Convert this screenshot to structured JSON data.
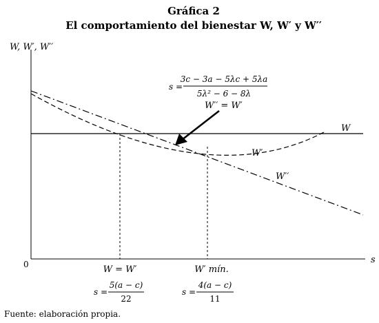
{
  "chart_data": {
    "type": "line",
    "title": "Gráfica 2",
    "subtitle": "El comportamiento del bienestar W, W′ y W′′",
    "ylabel": "W, W′, W′′",
    "xlabel": "s",
    "origin_label": "0",
    "series": [
      {
        "name": "W",
        "style": "solid"
      },
      {
        "name": "W′",
        "style": "dashed"
      },
      {
        "name": "W′′",
        "style": "dash-dot"
      }
    ],
    "annotations": {
      "intersection_formula": {
        "lhs": "s =",
        "numerator": "3c − 3a − 5λc + 5λa",
        "denominator": "5λ² − 6 − 8λ"
      },
      "intersection_label": "W′′ = W′",
      "marker1_label": "W = W′",
      "marker1_formula": {
        "lhs": "s =",
        "numerator": "5(a − c)",
        "denominator": "22"
      },
      "marker2_label": "W′ mín.",
      "marker2_formula": {
        "lhs": "s =",
        "numerator": "4(a − c)",
        "denominator": "11"
      }
    },
    "grid": false
  },
  "source": "Fuente: elaboración propia."
}
